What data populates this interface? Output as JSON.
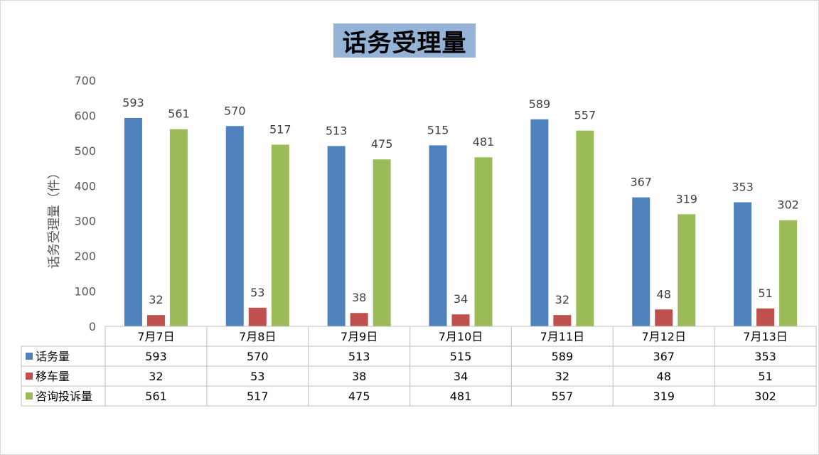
{
  "chart_data": {
    "type": "bar",
    "title": "话务受理量",
    "ylabel": "话务受理量（件）",
    "ylim": [
      0,
      700
    ],
    "yticks": [
      0,
      100,
      200,
      300,
      400,
      500,
      600,
      700
    ],
    "categories": [
      "7月7日",
      "7月8日",
      "7月9日",
      "7月10日",
      "7月11日",
      "7月12日",
      "7月13日"
    ],
    "series": [
      {
        "name": "话务量",
        "color": "#4f81bd",
        "values": [
          593,
          570,
          513,
          515,
          589,
          367,
          353
        ]
      },
      {
        "name": "移车量",
        "color": "#c0504d",
        "values": [
          32,
          53,
          38,
          34,
          32,
          48,
          51
        ]
      },
      {
        "name": "咨询投诉量",
        "color": "#9bbb59",
        "values": [
          561,
          517,
          475,
          481,
          557,
          319,
          302
        ]
      }
    ],
    "grid": false,
    "legend": "data-table"
  }
}
